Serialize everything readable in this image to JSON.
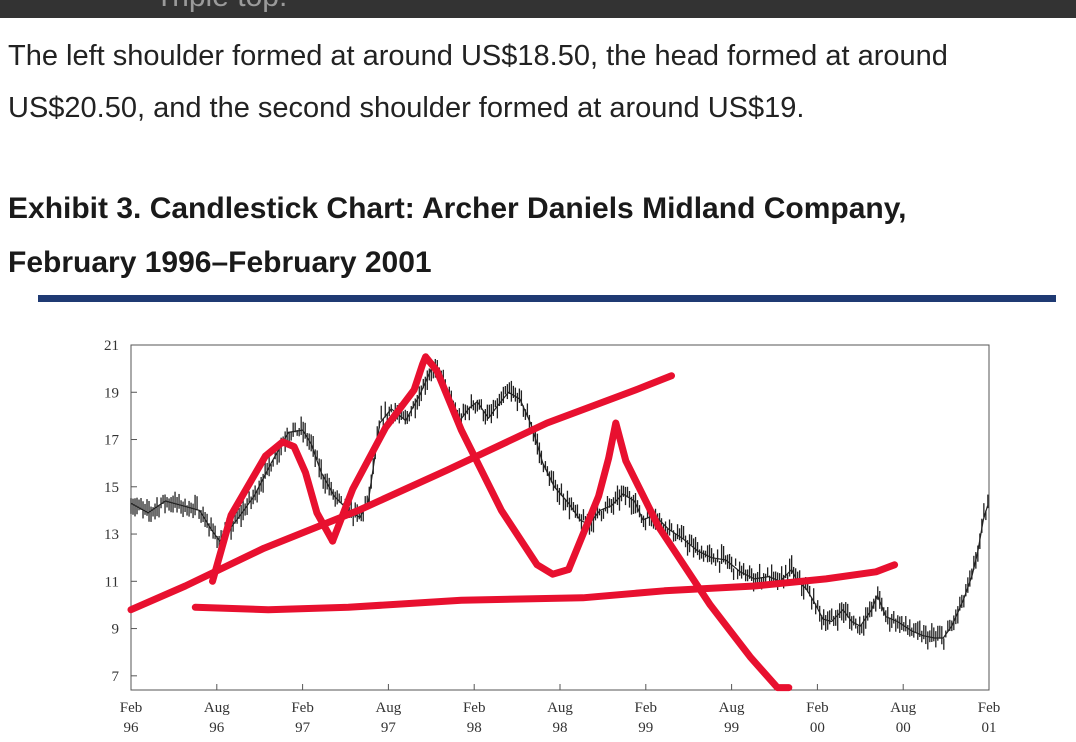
{
  "header": {
    "cropped_text": "Triple top."
  },
  "paragraph": "The left shoulder formed at around US$18.50, the head formed at around US$20.50, and the second shoulder formed at around US$19.",
  "exhibit": {
    "title": "Exhibit 3. Candlestick Chart: Archer Daniels Midland Company, February 1996–February 2001"
  },
  "colors": {
    "rule": "#1f3a73",
    "annotation": "#e8102f",
    "price": "#222222"
  },
  "chart_data": {
    "type": "candlestick",
    "title": "",
    "xlabel": "",
    "ylabel": "",
    "ylim": [
      6.4,
      21
    ],
    "xlim": [
      0,
      60
    ],
    "grid": false,
    "y_ticks": [
      21,
      19,
      17,
      15,
      13,
      11,
      9,
      7
    ],
    "x_ticks": [
      {
        "line1": "Feb",
        "line2": "96",
        "x": 0
      },
      {
        "line1": "Aug",
        "line2": "96",
        "x": 6
      },
      {
        "line1": "Feb",
        "line2": "97",
        "x": 12
      },
      {
        "line1": "Aug",
        "line2": "97",
        "x": 18
      },
      {
        "line1": "Feb",
        "line2": "98",
        "x": 24
      },
      {
        "line1": "Aug",
        "line2": "98",
        "x": 30
      },
      {
        "line1": "Feb",
        "line2": "99",
        "x": 36
      },
      {
        "line1": "Aug",
        "line2": "99",
        "x": 42
      },
      {
        "line1": "Feb",
        "line2": "00",
        "x": 48
      },
      {
        "line1": "Aug",
        "line2": "00",
        "x": 54
      },
      {
        "line1": "Feb",
        "line2": "01",
        "x": 60
      }
    ],
    "price_path": [
      [
        0,
        14.3
      ],
      [
        1.2,
        13.9
      ],
      [
        2.4,
        14.4
      ],
      [
        3.6,
        14.2
      ],
      [
        4.8,
        14.0
      ],
      [
        5.6,
        13.2
      ],
      [
        6.2,
        12.7
      ],
      [
        7.4,
        13.6
      ],
      [
        8.6,
        14.6
      ],
      [
        9.8,
        16.0
      ],
      [
        11.0,
        17.3
      ],
      [
        12.0,
        17.4
      ],
      [
        12.6,
        16.8
      ],
      [
        13.3,
        15.6
      ],
      [
        14.2,
        14.6
      ],
      [
        15.2,
        14.0
      ],
      [
        16.0,
        13.7
      ],
      [
        16.6,
        14.4
      ],
      [
        17.4,
        17.7
      ],
      [
        18.2,
        18.3
      ],
      [
        19.2,
        17.8
      ],
      [
        20.2,
        18.9
      ],
      [
        21.0,
        20.0
      ],
      [
        21.8,
        19.6
      ],
      [
        22.4,
        18.5
      ],
      [
        23.0,
        17.8
      ],
      [
        23.6,
        18.3
      ],
      [
        24.2,
        18.6
      ],
      [
        25.0,
        17.9
      ],
      [
        25.6,
        18.4
      ],
      [
        26.4,
        19.0
      ],
      [
        27.2,
        18.7
      ],
      [
        28.0,
        17.6
      ],
      [
        28.8,
        16.0
      ],
      [
        29.6,
        15.0
      ],
      [
        30.6,
        14.3
      ],
      [
        31.4,
        13.6
      ],
      [
        32.0,
        13.4
      ],
      [
        32.8,
        14.0
      ],
      [
        33.6,
        14.2
      ],
      [
        34.4,
        14.7
      ],
      [
        35.2,
        14.4
      ],
      [
        35.8,
        13.6
      ],
      [
        36.6,
        13.8
      ],
      [
        37.6,
        13.2
      ],
      [
        38.6,
        12.8
      ],
      [
        39.6,
        12.3
      ],
      [
        40.6,
        12.0
      ],
      [
        41.6,
        11.9
      ],
      [
        42.6,
        11.4
      ],
      [
        43.6,
        11.1
      ],
      [
        44.6,
        11.2
      ],
      [
        45.4,
        11.0
      ],
      [
        46.2,
        11.5
      ],
      [
        46.6,
        11.0
      ],
      [
        47.2,
        10.7
      ],
      [
        47.8,
        10.1
      ],
      [
        48.4,
        9.4
      ],
      [
        49.0,
        9.3
      ],
      [
        49.8,
        9.8
      ],
      [
        50.4,
        9.3
      ],
      [
        51.0,
        9.1
      ],
      [
        51.8,
        9.8
      ],
      [
        52.2,
        10.4
      ],
      [
        52.8,
        9.5
      ],
      [
        53.6,
        9.3
      ],
      [
        54.6,
        8.9
      ],
      [
        55.4,
        8.7
      ],
      [
        56.2,
        8.6
      ],
      [
        56.8,
        8.6
      ],
      [
        57.4,
        9.1
      ],
      [
        58.2,
        10.2
      ],
      [
        58.8,
        11.2
      ],
      [
        59.2,
        12.2
      ],
      [
        59.6,
        13.6
      ],
      [
        59.9,
        14.2
      ],
      [
        60.2,
        13.3
      ]
    ],
    "annotations": [
      {
        "name": "left-shoulder-peak",
        "points": [
          [
            5.7,
            11.0
          ],
          [
            7.0,
            13.8
          ],
          [
            9.4,
            16.3
          ],
          [
            10.6,
            16.9
          ],
          [
            11.4,
            16.7
          ],
          [
            12.2,
            15.6
          ],
          [
            13.0,
            13.9
          ],
          [
            14.1,
            12.7
          ]
        ]
      },
      {
        "name": "head-peak",
        "points": [
          [
            14.1,
            12.7
          ],
          [
            15.5,
            14.9
          ],
          [
            17.8,
            17.5
          ],
          [
            19.8,
            19.1
          ],
          [
            20.4,
            20.2
          ],
          [
            20.6,
            20.5
          ],
          [
            21.4,
            19.9
          ],
          [
            23.1,
            17.4
          ],
          [
            25.9,
            14.0
          ],
          [
            28.4,
            11.7
          ],
          [
            29.5,
            11.3
          ],
          [
            30.6,
            11.5
          ]
        ]
      },
      {
        "name": "right-shoulder-peak",
        "points": [
          [
            30.6,
            11.5
          ],
          [
            32.7,
            14.6
          ],
          [
            33.4,
            16.2
          ],
          [
            33.9,
            17.7
          ],
          [
            34.6,
            16.1
          ],
          [
            36.9,
            13.3
          ],
          [
            40.5,
            10.0
          ],
          [
            43.3,
            7.8
          ],
          [
            45.2,
            6.5
          ],
          [
            46.0,
            6.5
          ]
        ]
      },
      {
        "name": "ascending-neckline",
        "points": [
          [
            0,
            9.8
          ],
          [
            3.8,
            10.8
          ],
          [
            9.3,
            12.4
          ],
          [
            15.9,
            14.0
          ],
          [
            22.1,
            15.7
          ],
          [
            29.1,
            17.7
          ],
          [
            35.3,
            19.1
          ],
          [
            37.8,
            19.7
          ]
        ]
      },
      {
        "name": "support-line",
        "points": [
          [
            4.5,
            9.9
          ],
          [
            9.6,
            9.8
          ],
          [
            15.2,
            9.9
          ],
          [
            23.1,
            10.2
          ],
          [
            31.6,
            10.3
          ],
          [
            37.3,
            10.6
          ],
          [
            43.6,
            10.8
          ],
          [
            48.6,
            11.1
          ],
          [
            52.1,
            11.4
          ],
          [
            53.4,
            11.7
          ]
        ]
      }
    ]
  }
}
